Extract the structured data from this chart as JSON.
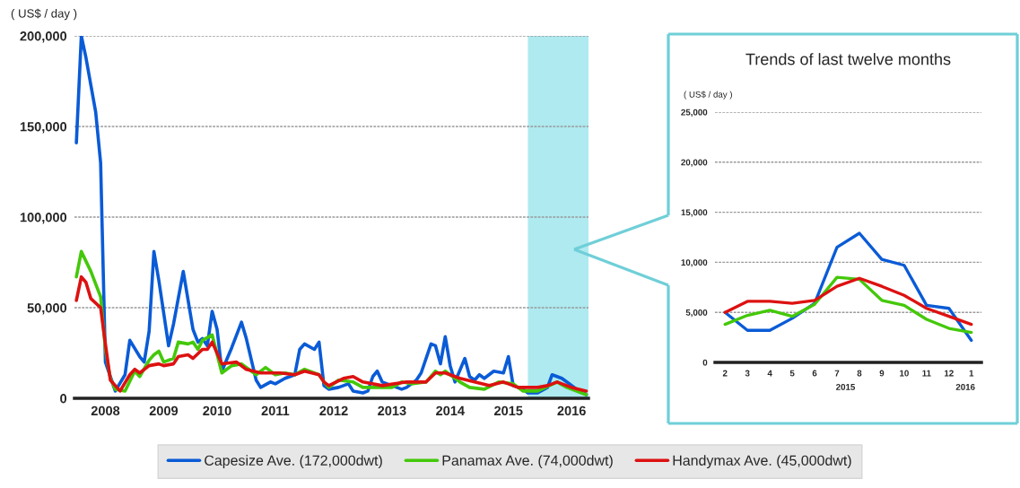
{
  "chart_data": [
    {
      "type": "line",
      "ylabel": "( US$ / day )",
      "xlim": [
        "2007-12-20",
        "2016-10-15"
      ],
      "xticks": [
        {
          "value": "2008-07",
          "label": "2008"
        },
        {
          "value": "2009-07",
          "label": "2009"
        },
        {
          "value": "2010-06",
          "label": "2010"
        },
        {
          "value": "2011-06",
          "label": "2011"
        },
        {
          "value": "2012-06",
          "label": "2012"
        },
        {
          "value": "2013-06",
          "label": "2013"
        },
        {
          "value": "2014-06",
          "label": "2014"
        },
        {
          "value": "2015-06",
          "label": "2015"
        },
        {
          "value": "2016-07",
          "label": "2016"
        }
      ],
      "ylim": [
        0,
        200000
      ],
      "yticks": [
        0,
        {
          "value": 50000,
          "label": "50,000"
        },
        {
          "value": 100000,
          "label": "100,000"
        },
        {
          "value": 150000,
          "label": "150,000"
        },
        {
          "value": 200000,
          "label": "200,000"
        }
      ],
      "grid": "y",
      "legend": "bottom",
      "bands": [
        {
          "axis": "x",
          "from": "2015-10",
          "to": "2016-10-15",
          "color": "#aeeaf0"
        }
      ],
      "series": [
        {
          "name": "Capesize Ave. (172,000dwt)",
          "color": "#0a5bd6",
          "x": [
            "2008-01",
            "2008-02",
            "2008-03",
            "2008-05",
            "2008-06",
            "2008-07",
            "2008-09",
            "2008-11",
            "2008-12",
            "2009-02",
            "2009-03",
            "2009-04",
            "2009-05",
            "2009-06",
            "2009-08",
            "2009-09",
            "2009-11",
            "2010-01",
            "2010-02",
            "2010-03",
            "2010-04",
            "2010-05",
            "2010-06",
            "2010-07",
            "2010-09",
            "2010-11",
            "2010-12",
            "2011-02",
            "2011-03",
            "2011-05",
            "2011-06",
            "2011-08",
            "2011-10",
            "2011-11",
            "2011-12",
            "2012-02",
            "2012-03",
            "2012-04",
            "2012-05",
            "2012-07",
            "2012-09",
            "2012-10",
            "2012-12",
            "2013-01",
            "2013-02",
            "2013-03",
            "2013-04",
            "2013-06",
            "2013-08",
            "2013-09",
            "2013-11",
            "2013-12",
            "2014-02",
            "2014-03",
            "2014-04",
            "2014-05",
            "2014-06",
            "2014-07",
            "2014-09",
            "2014-10",
            "2014-11",
            "2014-12",
            "2015-01",
            "2015-03",
            "2015-05",
            "2015-06",
            "2015-07",
            "2015-09",
            "2015-10",
            "2015-12",
            "2016-02",
            "2016-03",
            "2016-05",
            "2016-06",
            "2016-08",
            "2016-10"
          ],
          "values": [
            141000,
            200000,
            188000,
            158000,
            130000,
            20000,
            4000,
            13000,
            32000,
            23000,
            20000,
            37000,
            81000,
            65000,
            29000,
            41000,
            70000,
            38000,
            31000,
            33000,
            29000,
            48000,
            38000,
            15000,
            28000,
            42000,
            33000,
            10000,
            6000,
            9000,
            8000,
            11000,
            13000,
            27000,
            30000,
            27000,
            31000,
            7000,
            5000,
            6000,
            8000,
            4000,
            3000,
            4000,
            12000,
            15000,
            9000,
            7000,
            5000,
            6000,
            10000,
            14000,
            30000,
            29000,
            19000,
            34000,
            18000,
            9000,
            22000,
            12000,
            10000,
            13000,
            11000,
            15000,
            14000,
            23000,
            7000,
            5000,
            3000,
            3000,
            6000,
            13000,
            11000,
            9000,
            5000,
            2000
          ]
        },
        {
          "name": "Panamax Ave. (74,000dwt)",
          "color": "#44c80a",
          "x": [
            "2008-01",
            "2008-02",
            "2008-04",
            "2008-06",
            "2008-07",
            "2008-08",
            "2008-09",
            "2008-11",
            "2009-01",
            "2009-02",
            "2009-04",
            "2009-05",
            "2009-06",
            "2009-07",
            "2009-09",
            "2009-10",
            "2009-12",
            "2010-01",
            "2010-02",
            "2010-03",
            "2010-05",
            "2010-07",
            "2010-09",
            "2010-11",
            "2011-02",
            "2011-04",
            "2011-06",
            "2011-08",
            "2011-10",
            "2011-12",
            "2012-03",
            "2012-04",
            "2012-05",
            "2012-07",
            "2012-10",
            "2012-12",
            "2013-02",
            "2013-06",
            "2013-08",
            "2013-10",
            "2014-01",
            "2014-03",
            "2014-04",
            "2014-05",
            "2014-08",
            "2014-10",
            "2015-01",
            "2015-04",
            "2015-07",
            "2015-09",
            "2015-12",
            "2016-04",
            "2016-06",
            "2016-10"
          ],
          "values": [
            67000,
            81000,
            70000,
            56000,
            27000,
            11000,
            5000,
            4000,
            15000,
            12000,
            21000,
            24000,
            26000,
            20000,
            22000,
            31000,
            30000,
            31000,
            27000,
            32000,
            35000,
            14000,
            18000,
            19000,
            13000,
            17000,
            13000,
            14000,
            13000,
            16000,
            13000,
            9000,
            6000,
            10000,
            9000,
            6000,
            6000,
            6000,
            9000,
            8000,
            9000,
            15000,
            13000,
            15000,
            9000,
            6000,
            5000,
            9000,
            8000,
            4000,
            4000,
            9000,
            6000,
            2000
          ]
        },
        {
          "name": "Handymax Ave. (45,000dwt)",
          "color": "#dd1111",
          "x": [
            "2008-01",
            "2008-02",
            "2008-03",
            "2008-04",
            "2008-06",
            "2008-07",
            "2008-08",
            "2008-10",
            "2008-12",
            "2009-01",
            "2009-02",
            "2009-04",
            "2009-06",
            "2009-07",
            "2009-09",
            "2009-10",
            "2009-12",
            "2010-01",
            "2010-03",
            "2010-04",
            "2010-05",
            "2010-07",
            "2010-10",
            "2010-12",
            "2011-03",
            "2011-07",
            "2011-10",
            "2011-12",
            "2012-03",
            "2012-04",
            "2012-05",
            "2012-08",
            "2012-10",
            "2012-12",
            "2013-04",
            "2013-09",
            "2014-01",
            "2014-03",
            "2014-05",
            "2014-08",
            "2014-11",
            "2015-02",
            "2015-05",
            "2015-08",
            "2015-12",
            "2016-02",
            "2016-04",
            "2016-07",
            "2016-10"
          ],
          "values": [
            54000,
            67000,
            64000,
            55000,
            50000,
            30000,
            10000,
            4000,
            13000,
            16000,
            14000,
            18000,
            19000,
            18000,
            19000,
            23000,
            24000,
            22000,
            27000,
            27000,
            31000,
            19000,
            20000,
            16000,
            14000,
            14000,
            13000,
            15000,
            13000,
            9000,
            7000,
            11000,
            12000,
            9000,
            7000,
            9000,
            9000,
            14000,
            14000,
            11000,
            9000,
            7000,
            9000,
            6000,
            6000,
            7000,
            9000,
            6000,
            4000
          ]
        }
      ]
    },
    {
      "type": "line",
      "title": "Trends of last twelve months",
      "ylabel": "( US$ / day )",
      "categories": [
        "2",
        "3",
        "4",
        "5",
        "6",
        "7",
        "8",
        "9",
        "10",
        "11",
        "12",
        "1"
      ],
      "ylim": [
        0,
        25000
      ],
      "yticks": [
        0,
        {
          "value": 5000,
          "label": "5,000"
        },
        {
          "value": 10000,
          "label": "10,000"
        },
        {
          "value": 15000,
          "label": "15,000"
        },
        {
          "value": 20000,
          "label": "20,000"
        },
        {
          "value": 25000,
          "label": "25,000"
        }
      ],
      "grid": "y",
      "annotations": [
        "2015",
        "2016"
      ],
      "series": [
        {
          "color": "#0a5bd6",
          "values": [
            5000,
            3200,
            3200,
            4400,
            5900,
            11500,
            12900,
            10300,
            9700,
            5700,
            5400,
            2200
          ]
        },
        {
          "color": "#44c80a",
          "values": [
            3800,
            4700,
            5200,
            4600,
            5800,
            8500,
            8300,
            6200,
            5700,
            4300,
            3400,
            3000
          ]
        },
        {
          "color": "#dd1111",
          "values": [
            5000,
            6100,
            6100,
            5900,
            6200,
            7600,
            8400,
            7600,
            6700,
            5400,
            4600,
            3800
          ]
        }
      ]
    }
  ]
}
